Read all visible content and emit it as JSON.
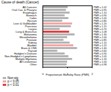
{
  "chart_data": {
    "type": "bar",
    "orientation": "horizontal",
    "y_label": "Cause of death (Cancer)",
    "x_label": "Proportionate Mortality Ratio (PMR)",
    "categories": [
      "All Cancers",
      "Oral Cav. & Pharynx",
      "Esophagus",
      "Stomach",
      "Colon",
      "Rectum",
      "Liver & Gallbladder",
      "Pancreas",
      "Larynx",
      "Lung & Bronchus",
      "Melanoma",
      "Mesothelioma",
      "Prostate",
      "Kidney",
      "Bladder",
      "Brain & CNS",
      "Thyroid",
      "Hodgkin's Disease",
      "Non-Hodgkin's Lymphoma",
      "Multiple Myeloma",
      "All Leukemias",
      "Other"
    ],
    "series": [
      {
        "name": "Non-sig",
        "color": "#b4b4b4",
        "values": [
          1.02,
          0.95,
          1.1,
          0.9,
          1.05,
          0.8,
          null,
          1.15,
          0.7,
          null,
          1.3,
          1.0,
          0.85,
          1.1,
          null,
          1.4,
          0.6,
          0.9,
          1.05,
          1.2,
          1.0,
          0.98
        ]
      },
      {
        "name": "p < 0.05",
        "color": "#f4a6a6",
        "values": [
          null,
          null,
          null,
          null,
          null,
          null,
          1.2,
          null,
          null,
          null,
          null,
          null,
          null,
          null,
          1.25,
          null,
          null,
          null,
          null,
          null,
          null,
          null
        ]
      },
      {
        "name": "p < 0.01",
        "color": "#e04040",
        "values": [
          null,
          null,
          null,
          null,
          null,
          null,
          null,
          null,
          null,
          1.08,
          null,
          null,
          null,
          null,
          null,
          null,
          null,
          null,
          null,
          null,
          null,
          null
        ]
      }
    ],
    "value_labels": [
      "PMR = 1.02",
      "PMR = 0.95",
      "PMR = 1.10",
      "PMR = 0.90",
      "PMR = 1.05",
      "PMR = 0.80",
      "PMR = 1.20",
      "PMR = 1.15",
      "PMR = 0.70",
      "PMR = 1.08",
      "PMR = 1.30",
      "PMR = 1.00",
      "PMR = 0.85",
      "PMR = 1.10",
      "PMR = 1.25",
      "PMR = 1.40",
      "PMR = 0.60",
      "PMR = 0.90",
      "PMR = 1.05",
      "PMR = 1.20",
      "PMR = 1.00",
      "PMR = 0.98"
    ],
    "data_labels": true,
    "legend": "bottom-left",
    "xlim": [
      0,
      2
    ],
    "xticks": [
      0,
      1,
      2
    ]
  }
}
